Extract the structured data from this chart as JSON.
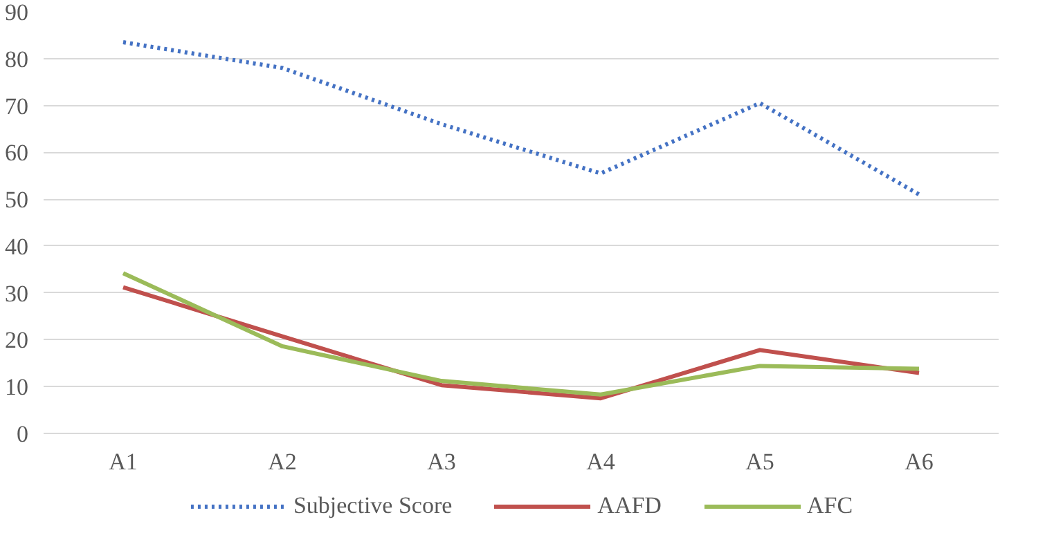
{
  "chart_data": {
    "type": "line",
    "categories": [
      "A1",
      "A2",
      "A3",
      "A4",
      "A5",
      "A6"
    ],
    "series": [
      {
        "name": "Subjective Score",
        "color": "#4472c4",
        "line_style": "dotted",
        "values": [
          83.5,
          78,
          66,
          55.5,
          70.5,
          51
        ]
      },
      {
        "name": "AAFD",
        "color": "#c0504d",
        "line_style": "solid",
        "values": [
          31.2,
          20.7,
          10.3,
          7.5,
          17.8,
          12.9
        ]
      },
      {
        "name": "AFC",
        "color": "#9bbb59",
        "line_style": "solid",
        "values": [
          34.2,
          18.6,
          11.2,
          8.3,
          14.4,
          13.8
        ]
      }
    ],
    "ylim": [
      0,
      90
    ],
    "yticks": [
      0,
      10,
      20,
      30,
      40,
      50,
      60,
      70,
      80,
      90
    ],
    "grid": "y",
    "legend": "bottom",
    "marker": "none"
  }
}
